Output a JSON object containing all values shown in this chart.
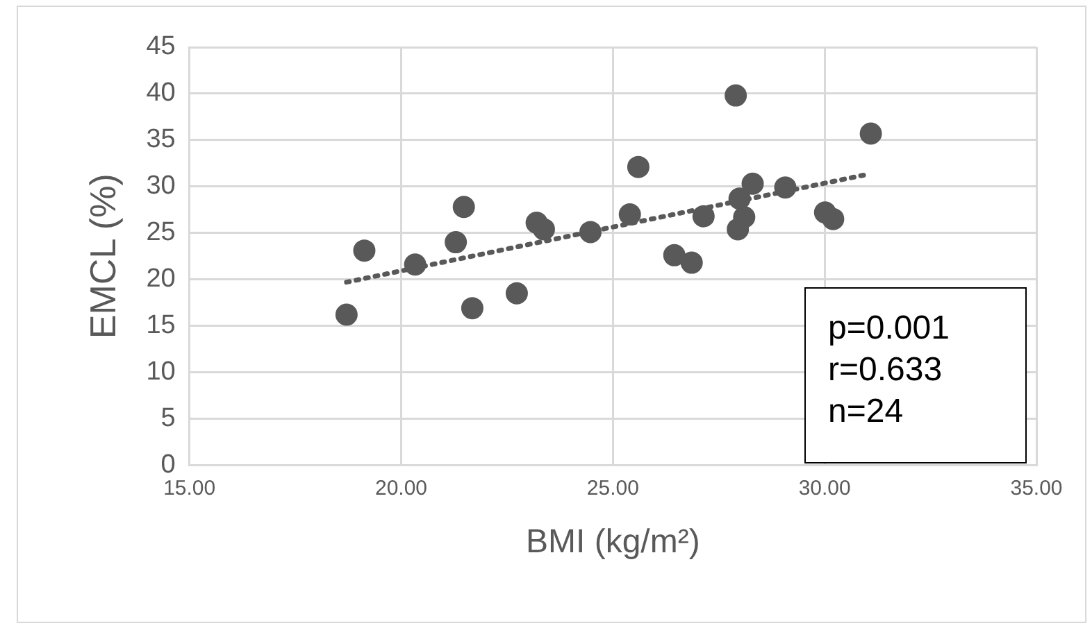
{
  "chart_data": {
    "type": "scatter",
    "xlabel": "BMI (kg/m²)",
    "ylabel": "EMCL (%)",
    "xlim": [
      15,
      35
    ],
    "xticks": [
      {
        "value": 15,
        "label": "15.00"
      },
      {
        "value": 20,
        "label": "20.00"
      },
      {
        "value": 25,
        "label": "25.00"
      },
      {
        "value": 30,
        "label": "30.00"
      },
      {
        "value": 35,
        "label": "35.00"
      }
    ],
    "ylim": [
      0,
      45
    ],
    "yticks": [
      0,
      5,
      10,
      15,
      20,
      25,
      30,
      35,
      40,
      45
    ],
    "grid": true,
    "marker": "circle",
    "series": [
      {
        "type": "scatter",
        "color": "#595959",
        "x": [
          18.71,
          19.13,
          20.33,
          21.29,
          21.48,
          21.68,
          22.73,
          23.2,
          23.37,
          24.47,
          25.4,
          25.6,
          26.45,
          26.86,
          27.14,
          27.9,
          27.95,
          27.99,
          28.1,
          28.3,
          29.07,
          30.01,
          30.2,
          31.09
        ],
        "values": [
          16.2,
          23.1,
          21.6,
          24.0,
          27.8,
          16.9,
          18.5,
          26.1,
          25.4,
          25.1,
          27.0,
          32.1,
          22.6,
          21.8,
          26.8,
          39.8,
          25.4,
          28.7,
          26.7,
          30.3,
          29.9,
          27.2,
          26.5,
          35.7
        ]
      },
      {
        "type": "line",
        "color": "#595959",
        "line_style": "dotted",
        "marker": "none",
        "x": [
          18.71,
          31.0
        ],
        "values": [
          19.7,
          31.3
        ]
      }
    ],
    "annotations": [
      "p=0.001",
      "r=0.633",
      "n=24"
    ]
  }
}
